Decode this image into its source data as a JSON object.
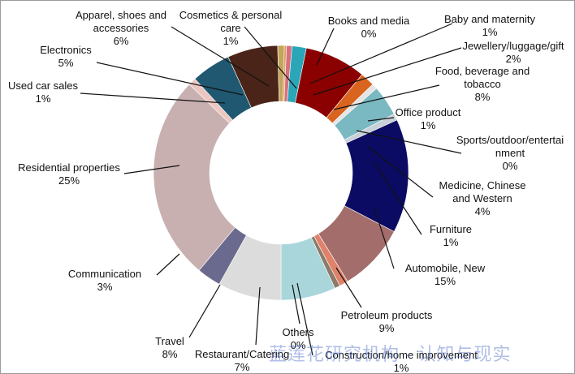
{
  "chart_data": {
    "type": "pie",
    "variant": "donut",
    "title": "",
    "slices": [
      {
        "label": "Books and media",
        "value": 0,
        "value_label": "0%",
        "color": "#d9a066"
      },
      {
        "label": "Baby and maternity",
        "value": 1,
        "value_label": "1%",
        "color": "#d9707d"
      },
      {
        "label": "Jewellery/luggage/gift",
        "value": 2,
        "value_label": "2%",
        "color": "#2aa6b8"
      },
      {
        "label": "Food, beverage and tobacco",
        "value": 8,
        "value_label": "8%",
        "color": "#8b0000"
      },
      {
        "label": "Office product",
        "value": 1,
        "value_label": "1%",
        "color": "#d8641f"
      },
      {
        "label": "Sports/outdoor/entertainment",
        "value": 0,
        "value_label": "0%",
        "color": "#e4e4e4"
      },
      {
        "label": "Medicine, Chinese and Western",
        "value": 4,
        "value_label": "4%",
        "color": "#7ab8c2"
      },
      {
        "label": "Furniture",
        "value": 1,
        "value_label": "1%",
        "color": "#c8d0d8"
      },
      {
        "label": "Automobile, New",
        "value": 15,
        "value_label": "15%",
        "color": "#0b0b63"
      },
      {
        "label": "Petroleum products",
        "value": 9,
        "value_label": "9%",
        "color": "#a26d6b"
      },
      {
        "label": "Construction/home improvement",
        "value": 1,
        "value_label": "1%",
        "color": "#e0826a"
      },
      {
        "label": "Others",
        "value": 0,
        "value_label": "0%",
        "color": "#8c7a6a"
      },
      {
        "label": "Restaurant/Catering",
        "value": 7,
        "value_label": "7%",
        "color": "#a9d6db"
      },
      {
        "label": "Travel",
        "value": 8,
        "value_label": "8%",
        "color": "#dcdcdc"
      },
      {
        "label": "Communication",
        "value": 3,
        "value_label": "3%",
        "color": "#6a6a8e"
      },
      {
        "label": "Residential properties",
        "value": 25,
        "value_label": "25%",
        "color": "#c9b0b0"
      },
      {
        "label": "Used car sales",
        "value": 1,
        "value_label": "1%",
        "color": "#ecc6c0"
      },
      {
        "label": "Electronics",
        "value": 5,
        "value_label": "5%",
        "color": "#1f5870"
      },
      {
        "label": "Apparel, shoes and accessories",
        "value": 6,
        "value_label": "6%",
        "color": "#4a2418"
      },
      {
        "label": "Cosmetics & personal care",
        "value": 1,
        "value_label": "1%",
        "color": "#c4a65a"
      }
    ],
    "labels": [
      {
        "lines": [
          "Books and media",
          "0%"
        ]
      },
      {
        "lines": [
          "Baby and maternity",
          "1%"
        ]
      },
      {
        "lines": [
          "Jewellery/luggage/gift",
          "2%"
        ]
      },
      {
        "lines": [
          "Food, beverage and",
          "tobacco",
          "8%"
        ]
      },
      {
        "lines": [
          "Office product",
          "1%"
        ]
      },
      {
        "lines": [
          "Sports/outdoor/entertai",
          "nment",
          "0%"
        ]
      },
      {
        "lines": [
          "Medicine, Chinese",
          "and Western",
          "4%"
        ]
      },
      {
        "lines": [
          "Furniture",
          "1%"
        ]
      },
      {
        "lines": [
          "Automobile, New",
          "15%"
        ]
      },
      {
        "lines": [
          "Petroleum products",
          "9%"
        ]
      },
      {
        "lines": [
          "Construction/home improvement",
          "1%"
        ]
      },
      {
        "lines": [
          "Others",
          "0%"
        ]
      },
      {
        "lines": [
          "Restaurant/Catering",
          "7%"
        ]
      },
      {
        "lines": [
          "Travel",
          "8%"
        ]
      },
      {
        "lines": [
          "Communication",
          "3%"
        ]
      },
      {
        "lines": [
          "Residential properties",
          "25%"
        ]
      },
      {
        "lines": [
          "Used car sales",
          "1%"
        ]
      },
      {
        "lines": [
          "Electronics",
          "5%"
        ]
      },
      {
        "lines": [
          "Apparel, shoes and",
          "accessories",
          "6%"
        ]
      },
      {
        "lines": [
          "Cosmetics & personal",
          "care",
          "1%"
        ]
      }
    ]
  },
  "watermark": "蓝莲花研究机构 - 认知与现实"
}
